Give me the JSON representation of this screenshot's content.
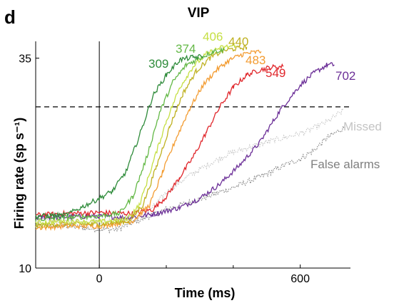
{
  "panel_letter": "d",
  "chart_data": {
    "type": "line",
    "title": "VIP",
    "xlabel": "Time (ms)",
    "ylabel": "Firing rate (sp s⁻¹)",
    "xlim": [
      -190,
      750
    ],
    "ylim": [
      10,
      37
    ],
    "xticks": [
      0,
      600
    ],
    "yticks": [
      10,
      35
    ],
    "reference_lines": {
      "vertical_x": 0,
      "horizontal_dashed_y": 29.2
    },
    "grid": false,
    "series": [
      {
        "name": "309",
        "color": "#2e8b3a",
        "noisy": true,
        "x": [
          -190,
          -100,
          0,
          40,
          80,
          120,
          160,
          200,
          240,
          280,
          309
        ],
        "y": [
          16.2,
          16.3,
          18.3,
          19.2,
          21.5,
          25.8,
          30.5,
          33.0,
          34.8,
          35.1,
          35.2
        ]
      },
      {
        "name": "374",
        "color": "#63b846",
        "noisy": true,
        "x": [
          -190,
          -100,
          0,
          60,
          100,
          140,
          180,
          220,
          260,
          300,
          340,
          374
        ],
        "y": [
          15.8,
          16.0,
          16.2,
          16.5,
          18.5,
          23.0,
          28.5,
          32.2,
          34.2,
          35.0,
          35.8,
          36.0
        ]
      },
      {
        "name": "406",
        "color": "#c5df43",
        "noisy": true,
        "x": [
          -190,
          -100,
          0,
          80,
          120,
          160,
          200,
          240,
          280,
          320,
          360,
          406
        ],
        "y": [
          15.4,
          15.6,
          15.5,
          15.8,
          17.5,
          22.5,
          27.5,
          31.5,
          34.0,
          35.5,
          36.2,
          36.5
        ]
      },
      {
        "name": "440",
        "color": "#bfb121",
        "noisy": true,
        "x": [
          -190,
          -100,
          0,
          90,
          130,
          170,
          210,
          250,
          290,
          330,
          370,
          400,
          440
        ],
        "y": [
          15.0,
          15.3,
          15.2,
          15.6,
          17.5,
          22.0,
          26.8,
          30.8,
          33.5,
          35.0,
          35.9,
          36.1,
          36.3
        ]
      },
      {
        "name": "483",
        "color": "#f39c32",
        "noisy": true,
        "x": [
          -190,
          -100,
          0,
          100,
          150,
          190,
          230,
          270,
          310,
          350,
          390,
          430,
          483
        ],
        "y": [
          14.8,
          15.0,
          15.0,
          15.6,
          17.5,
          21.5,
          25.5,
          29.0,
          31.8,
          33.6,
          34.8,
          35.5,
          35.8
        ]
      },
      {
        "name": "549",
        "color": "#e0262b",
        "noisy": true,
        "x": [
          -190,
          -100,
          0,
          100,
          160,
          200,
          240,
          280,
          320,
          360,
          400,
          440,
          480,
          510,
          549
        ],
        "y": [
          16.3,
          16.5,
          16.6,
          16.5,
          17.0,
          18.5,
          20.8,
          23.2,
          26.2,
          29.2,
          31.5,
          33.0,
          33.6,
          33.9,
          34.0
        ]
      },
      {
        "name": "702",
        "color": "#6b2e97",
        "noisy": true,
        "x": [
          -190,
          -100,
          0,
          80,
          160,
          240,
          300,
          360,
          420,
          480,
          540,
          600,
          640,
          680,
          702
        ],
        "y": [
          16.0,
          16.1,
          16.2,
          16.0,
          16.4,
          17.2,
          18.3,
          20.0,
          22.3,
          25.0,
          28.8,
          31.8,
          33.2,
          34.2,
          34.2
        ]
      },
      {
        "name": "Missed",
        "color": "#c4c4c4",
        "dotted": true,
        "x": [
          -190,
          -100,
          0,
          100,
          160,
          200,
          260,
          320,
          380,
          440,
          500,
          560,
          620,
          680,
          730
        ],
        "y": [
          15.6,
          15.6,
          15.5,
          16.0,
          17.2,
          19.0,
          20.8,
          22.2,
          23.5,
          24.3,
          25.0,
          25.6,
          26.3,
          27.4,
          28.8
        ]
      },
      {
        "name": "False alarms",
        "color": "#7f7f7f",
        "dotted": true,
        "x": [
          -190,
          -100,
          0,
          50,
          100,
          200,
          300,
          400,
          500,
          550,
          600,
          640,
          680,
          730
        ],
        "y": [
          15.1,
          15.0,
          14.6,
          14.6,
          15.4,
          17.0,
          18.2,
          19.6,
          21.2,
          22.2,
          23.0,
          24.0,
          25.5,
          26.7
        ]
      }
    ]
  }
}
